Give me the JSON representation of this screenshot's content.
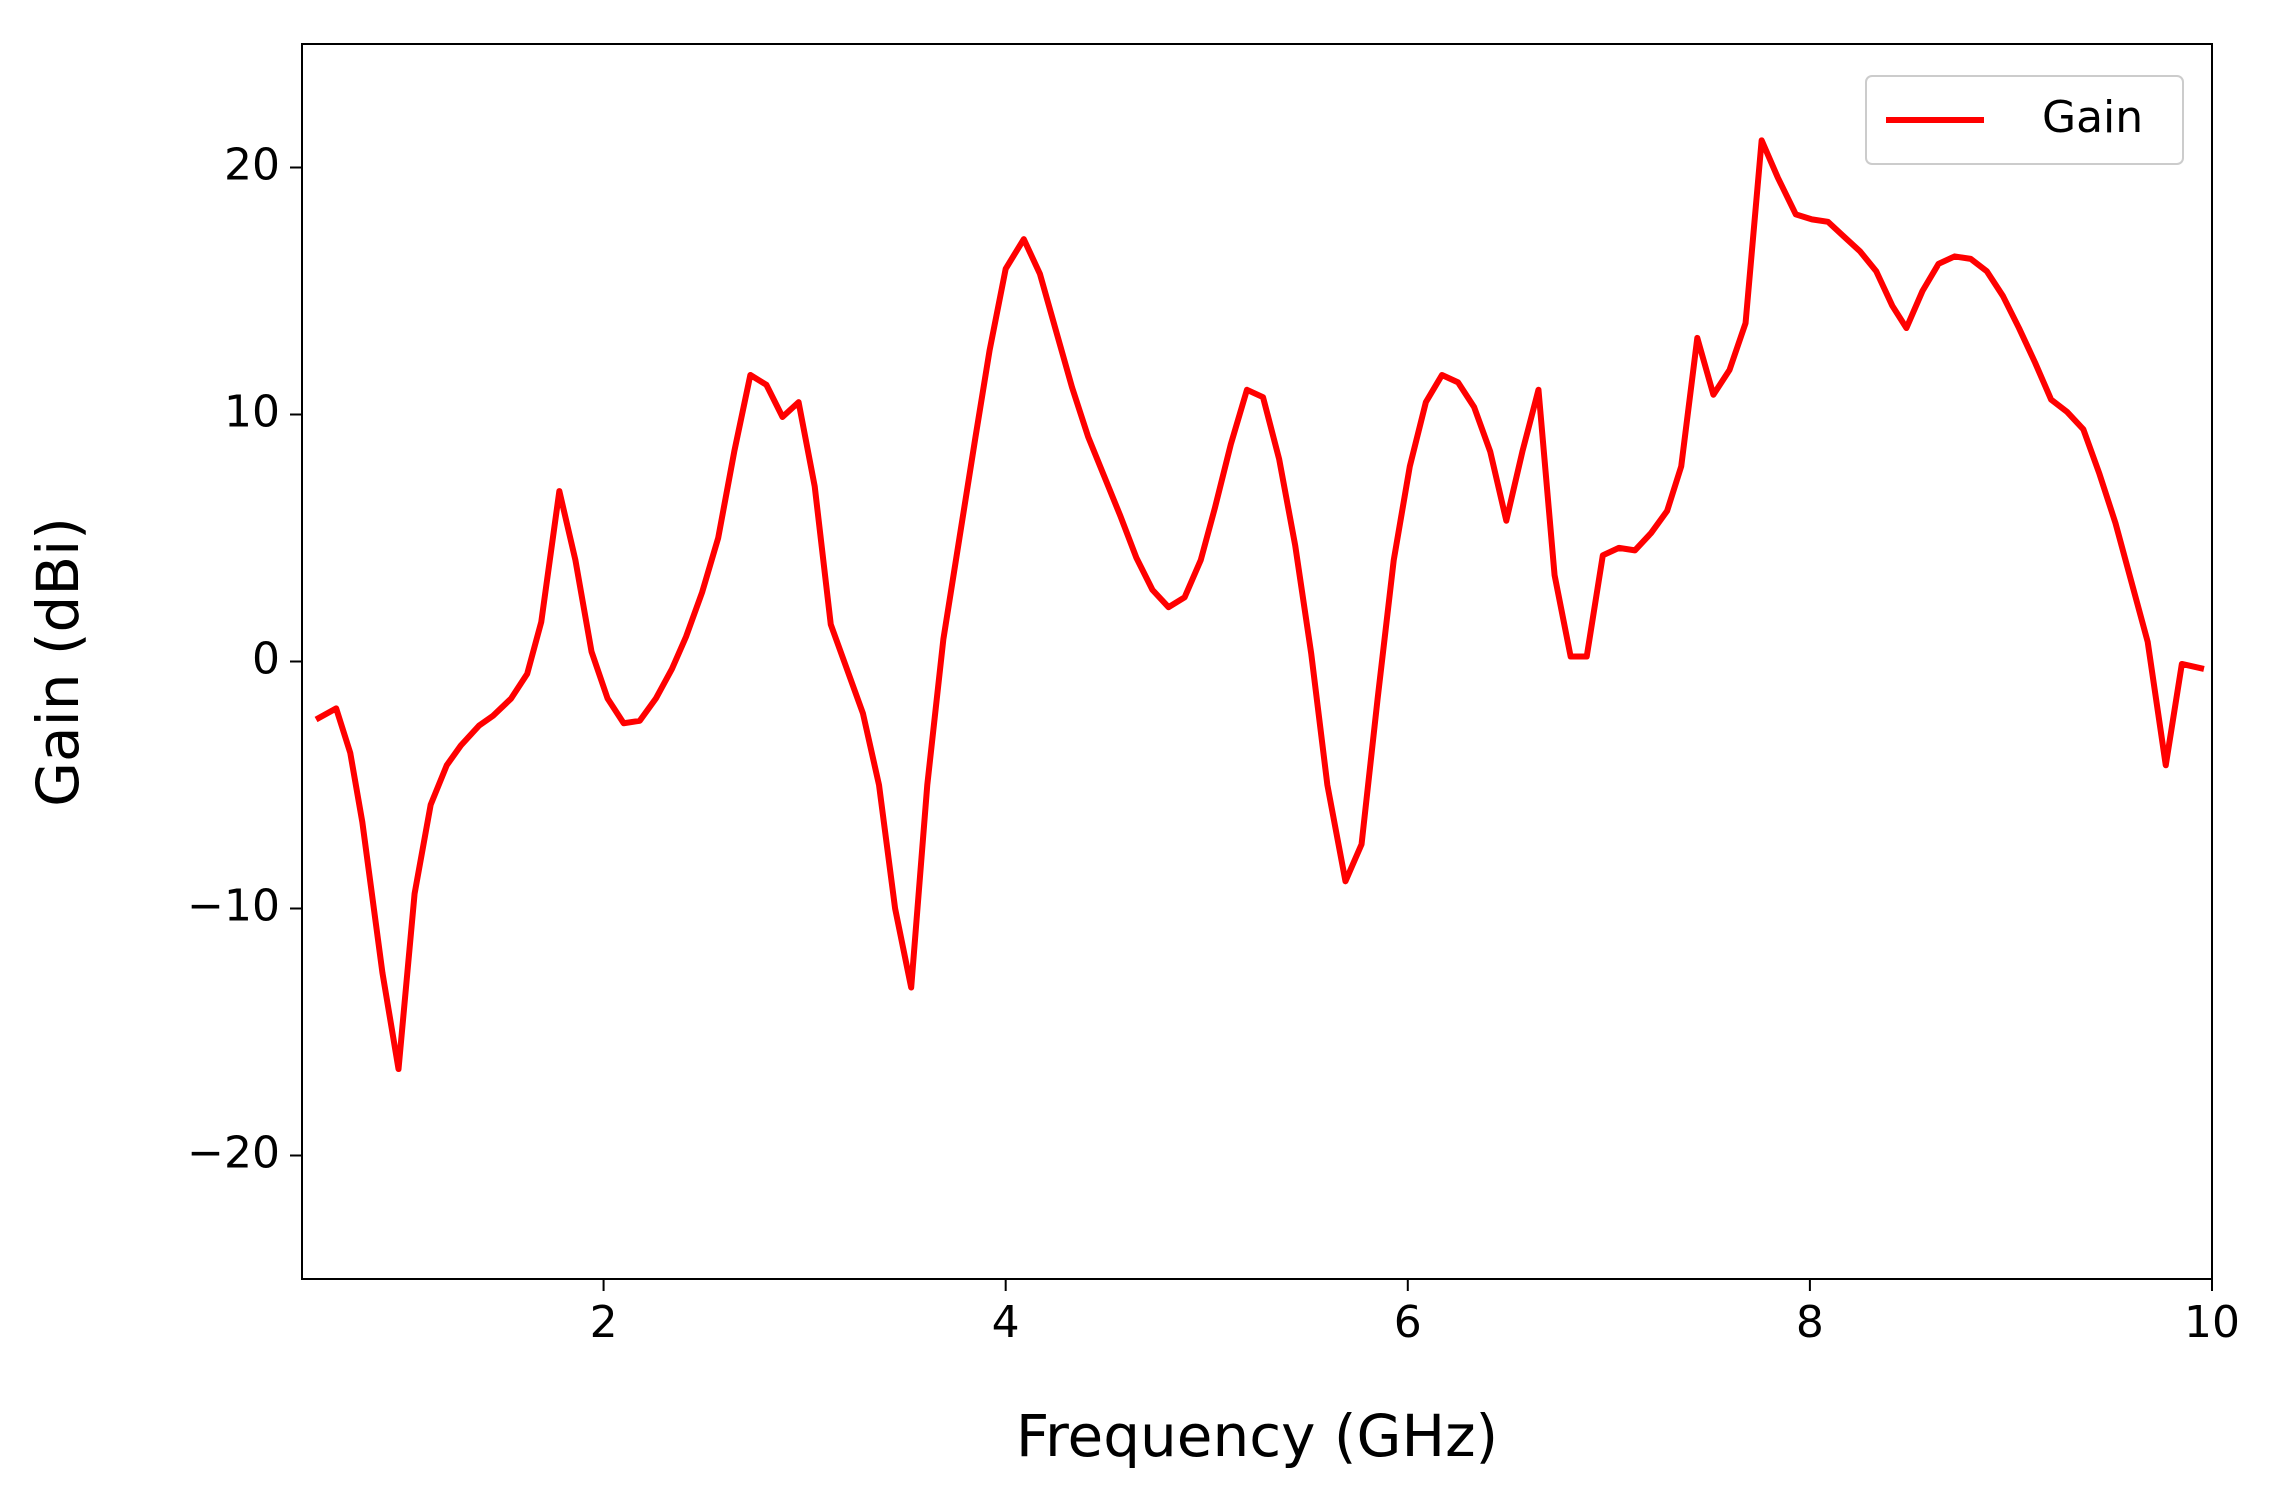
{
  "chart_data": {
    "type": "line",
    "xlabel": "Frequency (GHz)",
    "ylabel": "Gain (dBi)",
    "x": [
      0.57,
      0.67,
      0.74,
      0.8,
      0.9,
      0.98,
      1.06,
      1.14,
      1.22,
      1.29,
      1.38,
      1.45,
      1.54,
      1.62,
      1.69,
      1.78,
      1.86,
      1.94,
      2.02,
      2.1,
      2.18,
      2.26,
      2.34,
      2.41,
      2.49,
      2.57,
      2.65,
      2.73,
      2.81,
      2.89,
      2.97,
      3.05,
      3.13,
      3.21,
      3.29,
      3.37,
      3.45,
      3.53,
      3.61,
      3.69,
      3.77,
      3.85,
      3.92,
      4.0,
      4.09,
      4.17,
      4.25,
      4.33,
      4.41,
      4.49,
      4.57,
      4.65,
      4.73,
      4.81,
      4.89,
      4.97,
      5.04,
      5.12,
      5.2,
      5.28,
      5.36,
      5.44,
      5.52,
      5.6,
      5.69,
      5.77,
      5.85,
      5.93,
      6.01,
      6.09,
      6.17,
      6.25,
      6.33,
      6.41,
      6.49,
      6.57,
      6.65,
      6.73,
      6.81,
      6.89,
      6.97,
      7.05,
      7.13,
      7.21,
      7.29,
      7.36,
      7.44,
      7.52,
      7.6,
      7.68,
      7.76,
      7.84,
      7.93,
      8.01,
      8.09,
      8.17,
      8.25,
      8.33,
      8.41,
      8.48,
      8.56,
      8.64,
      8.72,
      8.8,
      8.88,
      8.96,
      9.04,
      9.12,
      9.2,
      9.28,
      9.36,
      9.44,
      9.52,
      9.6,
      9.68,
      9.77,
      9.85,
      9.96
    ],
    "series": [
      {
        "name": "Gain",
        "color": "#ff0000",
        "values": [
          -2.35,
          -1.9,
          -3.7,
          -6.5,
          -12.6,
          -16.5,
          -9.4,
          -5.8,
          -4.2,
          -3.4,
          -2.6,
          -2.2,
          -1.5,
          -0.5,
          1.6,
          6.9,
          4.1,
          0.4,
          -1.5,
          -2.5,
          -2.4,
          -1.5,
          -0.3,
          1.0,
          2.8,
          5.0,
          8.5,
          11.6,
          11.2,
          9.9,
          10.5,
          7.1,
          1.5,
          -0.3,
          -2.1,
          -5.0,
          -10.0,
          -13.2,
          -5.0,
          0.9,
          5.0,
          9.1,
          12.6,
          15.9,
          17.1,
          15.7,
          13.4,
          11.1,
          9.1,
          7.5,
          5.9,
          4.2,
          2.9,
          2.2,
          2.6,
          4.1,
          6.2,
          8.8,
          11.0,
          10.7,
          8.2,
          4.7,
          0.3,
          -5.0,
          -8.9,
          -7.4,
          -1.5,
          4.1,
          7.9,
          10.5,
          11.6,
          11.3,
          10.3,
          8.5,
          5.7,
          8.5,
          11.0,
          3.5,
          0.2,
          0.2,
          4.3,
          4.6,
          4.5,
          5.2,
          6.1,
          7.9,
          13.1,
          10.8,
          11.8,
          13.7,
          21.1,
          19.6,
          18.1,
          17.9,
          17.8,
          17.2,
          16.6,
          15.8,
          14.4,
          13.5,
          15.0,
          16.1,
          16.4,
          16.3,
          15.8,
          14.8,
          13.5,
          12.1,
          10.6,
          10.1,
          9.4,
          7.6,
          5.6,
          3.2,
          0.8,
          -4.2,
          -0.1,
          -0.3
        ]
      }
    ],
    "xlim": [
      0.5,
      10
    ],
    "ylim": [
      -25,
      25
    ],
    "xticks": [
      2,
      4,
      6,
      8,
      10
    ],
    "yticks": [
      {
        "value": -20,
        "label": "−20"
      },
      {
        "value": -10,
        "label": "−10"
      },
      0,
      10,
      20
    ],
    "legend": "upper right"
  }
}
